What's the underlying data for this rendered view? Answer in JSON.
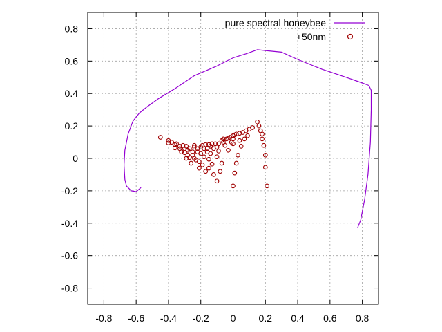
{
  "chart_data": {
    "type": "scatter",
    "title": "",
    "xlabel": "",
    "ylabel": "",
    "xlim": [
      -0.9,
      0.9
    ],
    "ylim": [
      -0.9,
      0.9
    ],
    "x_ticks": [
      "-0.8",
      "-0.6",
      "-0.4",
      "-0.2",
      "0",
      "0.2",
      "0.4",
      "0.6",
      "0.8"
    ],
    "y_ticks": [
      "0.8",
      "0.6",
      "0.4",
      "0.2",
      "0",
      "-0.2",
      "-0.4",
      "-0.6",
      "-0.8"
    ],
    "x_tick_values": [
      -0.8,
      -0.6,
      -0.4,
      -0.2,
      0,
      0.2,
      0.4,
      0.6,
      0.8
    ],
    "y_tick_values": [
      0.8,
      0.6,
      0.4,
      0.2,
      0,
      -0.2,
      -0.4,
      -0.6,
      -0.8
    ],
    "grid": true,
    "legend_position": "top-right",
    "series": [
      {
        "name": "pure spectral honeybee",
        "kind": "line",
        "color": "#9400d3",
        "points": [
          [
            -0.57,
            -0.18
          ],
          [
            -0.6,
            -0.205
          ],
          [
            -0.63,
            -0.2
          ],
          [
            -0.66,
            -0.17
          ],
          [
            -0.67,
            -0.13
          ],
          [
            -0.675,
            -0.04
          ],
          [
            -0.67,
            0.05
          ],
          [
            -0.65,
            0.15
          ],
          [
            -0.62,
            0.23
          ],
          [
            -0.58,
            0.28
          ],
          [
            -0.53,
            0.32
          ],
          [
            -0.46,
            0.37
          ],
          [
            -0.36,
            0.43
          ],
          [
            -0.24,
            0.51
          ],
          [
            -0.1,
            0.57
          ],
          [
            0.0,
            0.62
          ],
          [
            0.08,
            0.645
          ],
          [
            0.15,
            0.67
          ],
          [
            0.2,
            0.665
          ],
          [
            0.3,
            0.655
          ],
          [
            0.4,
            0.61
          ],
          [
            0.55,
            0.55
          ],
          [
            0.7,
            0.5
          ],
          [
            0.8,
            0.465
          ],
          [
            0.84,
            0.45
          ],
          [
            0.855,
            0.42
          ],
          [
            0.855,
            0.3
          ],
          [
            0.85,
            0.1
          ],
          [
            0.835,
            -0.1
          ],
          [
            0.815,
            -0.25
          ],
          [
            0.79,
            -0.38
          ],
          [
            0.77,
            -0.43
          ]
        ]
      },
      {
        "name": "+50nm",
        "kind": "points",
        "color": "#a00000",
        "points": [
          [
            -0.45,
            0.13
          ],
          [
            -0.4,
            0.11
          ],
          [
            -0.4,
            0.095
          ],
          [
            -0.38,
            0.1
          ],
          [
            -0.36,
            0.085
          ],
          [
            -0.36,
            0.065
          ],
          [
            -0.35,
            0.09
          ],
          [
            -0.33,
            0.075
          ],
          [
            -0.33,
            0.06
          ],
          [
            -0.32,
            0.04
          ],
          [
            -0.31,
            0.08
          ],
          [
            -0.3,
            0.06
          ],
          [
            -0.3,
            0.035
          ],
          [
            -0.29,
            0.075
          ],
          [
            -0.29,
            0.0
          ],
          [
            -0.28,
            0.05
          ],
          [
            -0.28,
            0.02
          ],
          [
            -0.27,
            0.06
          ],
          [
            -0.27,
            0.005
          ],
          [
            -0.26,
            -0.03
          ],
          [
            -0.25,
            0.04
          ],
          [
            -0.25,
            0.02
          ],
          [
            -0.24,
            0.08
          ],
          [
            -0.24,
            0.07
          ],
          [
            -0.24,
            0.0
          ],
          [
            -0.23,
            -0.01
          ],
          [
            -0.22,
            0.06
          ],
          [
            -0.22,
            0.04
          ],
          [
            -0.21,
            -0.02
          ],
          [
            -0.21,
            -0.06
          ],
          [
            -0.2,
            0.07
          ],
          [
            -0.2,
            0.03
          ],
          [
            -0.19,
            0.08
          ],
          [
            -0.19,
            -0.04
          ],
          [
            -0.18,
            0.06
          ],
          [
            -0.18,
            0.01
          ],
          [
            -0.17,
            0.085
          ],
          [
            -0.17,
            -0.08
          ],
          [
            -0.16,
            0.06
          ],
          [
            -0.16,
            0.04
          ],
          [
            -0.15,
            0.085
          ],
          [
            -0.15,
            -0.005
          ],
          [
            -0.15,
            -0.06
          ],
          [
            -0.14,
            0.075
          ],
          [
            -0.14,
            0.03
          ],
          [
            -0.13,
            0.09
          ],
          [
            -0.13,
            -0.035
          ],
          [
            -0.12,
            0.06
          ],
          [
            -0.12,
            -0.1
          ],
          [
            -0.11,
            0.09
          ],
          [
            -0.1,
            0.07
          ],
          [
            -0.1,
            0.01
          ],
          [
            -0.1,
            -0.14
          ],
          [
            -0.09,
            0.09
          ],
          [
            -0.09,
            0.045
          ],
          [
            -0.08,
            -0.08
          ],
          [
            -0.07,
            0.11
          ],
          [
            -0.07,
            -0.03
          ],
          [
            -0.06,
            0.1
          ],
          [
            -0.06,
            0.12
          ],
          [
            -0.05,
            0.08
          ],
          [
            -0.04,
            0.12
          ],
          [
            -0.03,
            0.125
          ],
          [
            -0.03,
            0.05
          ],
          [
            -0.02,
            0.13
          ],
          [
            -0.01,
            0.1
          ],
          [
            0.0,
            0.12
          ],
          [
            0.0,
            0.14
          ],
          [
            0.0,
            0.09
          ],
          [
            0.0,
            -0.17
          ],
          [
            0.01,
            0.145
          ],
          [
            0.01,
            -0.09
          ],
          [
            0.02,
            0.15
          ],
          [
            0.02,
            -0.03
          ],
          [
            0.03,
            0.02
          ],
          [
            0.04,
            0.11
          ],
          [
            0.04,
            0.155
          ],
          [
            0.05,
            0.075
          ],
          [
            0.06,
            0.16
          ],
          [
            0.07,
            0.12
          ],
          [
            0.08,
            0.17
          ],
          [
            0.09,
            0.14
          ],
          [
            0.1,
            0.18
          ],
          [
            0.12,
            0.19
          ],
          [
            0.15,
            0.225
          ],
          [
            0.16,
            0.2
          ],
          [
            0.17,
            0.17
          ],
          [
            0.18,
            0.15
          ],
          [
            0.18,
            0.12
          ],
          [
            0.19,
            0.08
          ],
          [
            0.2,
            0.02
          ],
          [
            0.2,
            -0.055
          ],
          [
            0.21,
            -0.17
          ]
        ]
      }
    ]
  }
}
